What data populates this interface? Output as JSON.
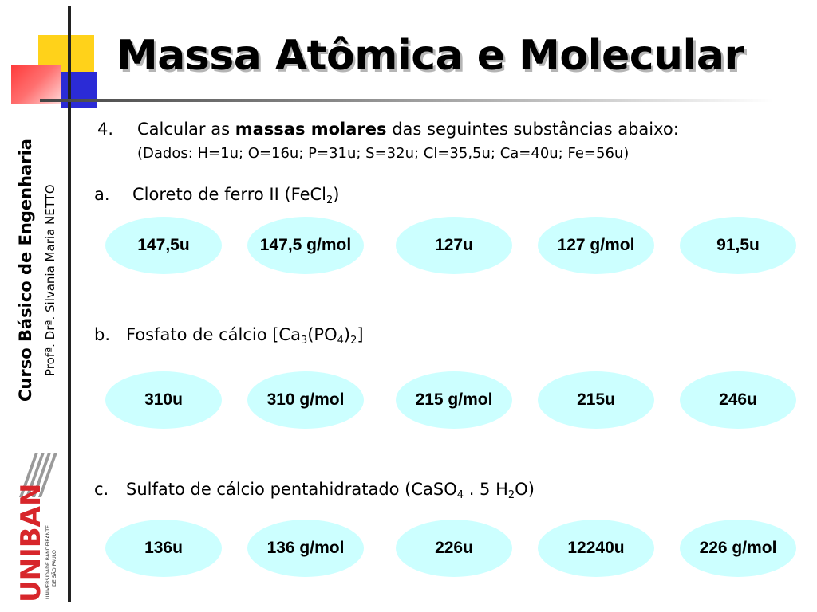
{
  "title": "Massa Atômica e Molecular",
  "sidebar": {
    "course": "Curso Básico de Engenharia",
    "professor": "Profª. Drª. Silvania Maria NETTO",
    "logo": {
      "name": "UNIBAN",
      "subtitle": "UNIVERSIDADE BANDEIRANTE DE SÃO PAULO"
    }
  },
  "question": {
    "number": "4.",
    "text_before": "Calcular as ",
    "emphasis": "massas molares",
    "text_after": " das seguintes substâncias abaixo:",
    "dados": "(Dados: H=1u; O=16u; P=31u; S=32u; Cl=35,5u; Ca=40u; Fe=56u)"
  },
  "items": [
    {
      "label": "a.",
      "text": "Cloreto de ferro II (FeCl",
      "sub1": "2",
      "text2": ")",
      "options": [
        "147,5u",
        "147,5 g/mol",
        "127u",
        "127 g/mol",
        "91,5u"
      ]
    },
    {
      "label": "b.",
      "text": "Fosfato de cálcio [Ca",
      "sub1": "3",
      "text2": "(PO",
      "sub2": "4",
      "text3": ")",
      "sub3": "2",
      "text4": "]",
      "options": [
        "310u",
        "310 g/mol",
        "215 g/mol",
        "215u",
        "246u"
      ]
    },
    {
      "label": "c.",
      "text": "Sulfato de cálcio pentahidratado (CaSO",
      "sub1": "4",
      "text2": " . 5 H",
      "sub2": "2",
      "text3": "O)",
      "options": [
        "136u",
        "136 g/mol",
        "226u",
        "12240u",
        "226 g/mol"
      ]
    }
  ],
  "colors": {
    "oval": "#ccffff",
    "accent_yellow": "#ffd21a",
    "accent_blue": "#2b2bd6",
    "accent_red": "#ff3b3b",
    "logo_red": "#d7262b"
  }
}
